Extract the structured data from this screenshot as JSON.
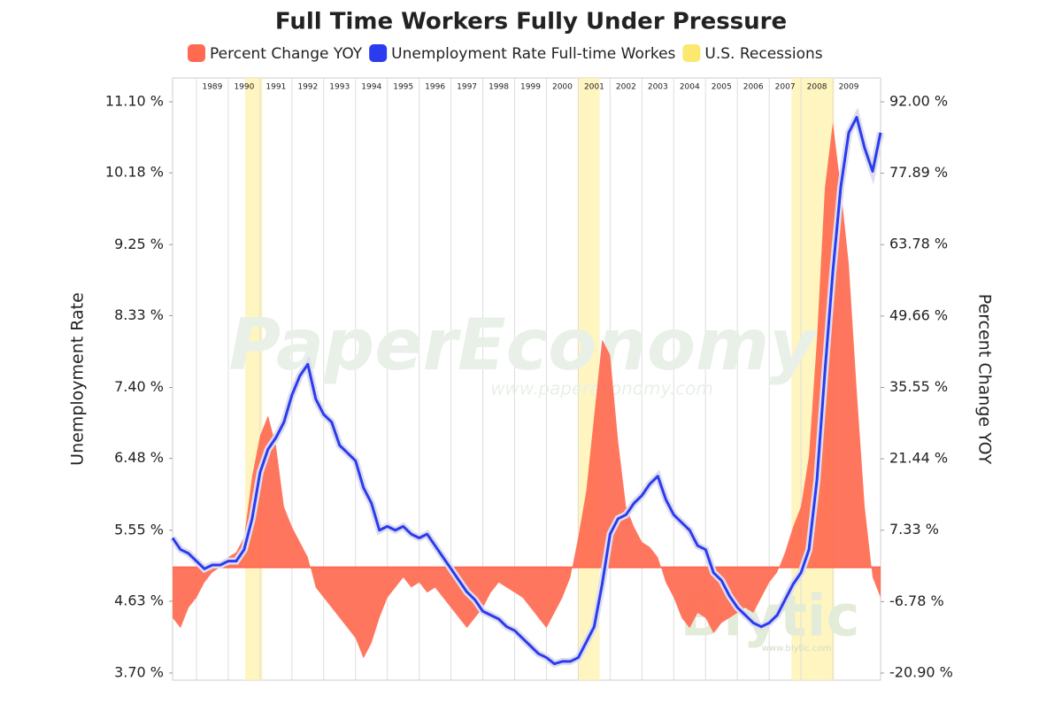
{
  "chart_data": {
    "type": "line-area",
    "title": "Full Time Workers Fully Under Pressure",
    "ylabel": "Unemployment Rate",
    "y2label": "Percent Change YOY",
    "watermarks": [
      "PaperEconomy",
      "www.papereconomy.com",
      "Blytic",
      "www.blytic.com"
    ],
    "xlim": [
      1988.25,
      2010.5
    ],
    "xticks": [
      1989,
      1990,
      1991,
      1992,
      1993,
      1994,
      1995,
      1996,
      1997,
      1998,
      1999,
      2000,
      2001,
      2002,
      2003,
      2004,
      2005,
      2006,
      2007,
      2008,
      2009
    ],
    "ylim": [
      3.7,
      11.1
    ],
    "yticks": [
      {
        "value": 3.7,
        "label": "3.70 %"
      },
      {
        "value": 4.63,
        "label": "4.63 %"
      },
      {
        "value": 5.55,
        "label": "5.55 %"
      },
      {
        "value": 6.48,
        "label": "6.48 %"
      },
      {
        "value": 7.4,
        "label": "7.40 %"
      },
      {
        "value": 8.33,
        "label": "8.33 %"
      },
      {
        "value": 9.25,
        "label": "9.25 %"
      },
      {
        "value": 10.18,
        "label": "10.18 %"
      },
      {
        "value": 11.1,
        "label": "11.10 %"
      }
    ],
    "y2lim": [
      -20.9,
      92.0
    ],
    "y2ticks": [
      {
        "value": -20.9,
        "label": "-20.90 %"
      },
      {
        "value": -6.78,
        "label": "-6.78 %"
      },
      {
        "value": 7.33,
        "label": "7.33 %"
      },
      {
        "value": 21.44,
        "label": "21.44 %"
      },
      {
        "value": 35.55,
        "label": "35.55 %"
      },
      {
        "value": 49.66,
        "label": "49.66 %"
      },
      {
        "value": 63.78,
        "label": "63.78 %"
      },
      {
        "value": 77.89,
        "label": "77.89 %"
      },
      {
        "value": 92.0,
        "label": "92.00 %"
      }
    ],
    "x": [
      1988.25,
      1988.5,
      1988.75,
      1989,
      1989.25,
      1989.5,
      1989.75,
      1990,
      1990.25,
      1990.5,
      1990.75,
      1991,
      1991.25,
      1991.5,
      1991.75,
      1992,
      1992.25,
      1992.5,
      1992.75,
      1993,
      1993.25,
      1993.5,
      1993.75,
      1994,
      1994.25,
      1994.5,
      1994.75,
      1995,
      1995.25,
      1995.5,
      1995.75,
      1996,
      1996.25,
      1996.5,
      1996.75,
      1997,
      1997.25,
      1997.5,
      1997.75,
      1998,
      1998.25,
      1998.5,
      1998.75,
      1999,
      1999.25,
      1999.5,
      1999.75,
      2000,
      2000.25,
      2000.5,
      2000.75,
      2001,
      2001.25,
      2001.5,
      2001.75,
      2002,
      2002.25,
      2002.5,
      2002.75,
      2003,
      2003.25,
      2003.5,
      2003.75,
      2004,
      2004.25,
      2004.5,
      2004.75,
      2005,
      2005.25,
      2005.5,
      2005.75,
      2006,
      2006.25,
      2006.5,
      2006.75,
      2007,
      2007.25,
      2007.5,
      2007.75,
      2008,
      2008.25,
      2008.5,
      2008.75,
      2009,
      2009.25,
      2009.5,
      2009.75,
      2010,
      2010.25,
      2010.5
    ],
    "series": [
      {
        "name": "Percent Change YOY",
        "color": "#ff6a50",
        "axis": "y2",
        "kind": "area",
        "values": [
          -10,
          -12,
          -8,
          -6,
          -3,
          -1,
          0,
          2,
          3,
          6,
          18,
          26,
          30,
          24,
          12,
          8,
          5,
          2,
          -4,
          -6,
          -8,
          -10,
          -12,
          -14,
          -18,
          -15,
          -10,
          -6,
          -4,
          -2,
          -4,
          -3,
          -5,
          -4,
          -6,
          -8,
          -10,
          -12,
          -10,
          -8,
          -5,
          -3,
          -4,
          -5,
          -6,
          -8,
          -10,
          -12,
          -9,
          -6,
          -2,
          6,
          15,
          30,
          45,
          42,
          25,
          12,
          8,
          5,
          4,
          2,
          -3,
          -6,
          -10,
          -12,
          -9,
          -10,
          -13,
          -11,
          -10,
          -9,
          -8,
          -9,
          -6,
          -3,
          -1,
          3,
          8,
          12,
          22,
          45,
          75,
          88,
          75,
          60,
          35,
          12,
          -2,
          -6
        ]
      },
      {
        "name": "Unemployment Rate Full-time Workes",
        "color": "#2b3bef",
        "axis": "y",
        "kind": "line",
        "values": [
          5.45,
          5.3,
          5.25,
          5.15,
          5.05,
          5.1,
          5.1,
          5.15,
          5.15,
          5.3,
          5.7,
          6.3,
          6.6,
          6.75,
          6.95,
          7.3,
          7.55,
          7.7,
          7.25,
          7.05,
          6.95,
          6.65,
          6.55,
          6.45,
          6.1,
          5.9,
          5.55,
          5.6,
          5.55,
          5.6,
          5.5,
          5.45,
          5.5,
          5.35,
          5.2,
          5.05,
          4.9,
          4.75,
          4.65,
          4.5,
          4.45,
          4.4,
          4.3,
          4.25,
          4.15,
          4.05,
          3.95,
          3.9,
          3.82,
          3.85,
          3.85,
          3.9,
          4.1,
          4.3,
          4.85,
          5.5,
          5.7,
          5.75,
          5.9,
          6.0,
          6.15,
          6.25,
          5.95,
          5.75,
          5.65,
          5.55,
          5.35,
          5.3,
          5.0,
          4.9,
          4.7,
          4.55,
          4.45,
          4.35,
          4.3,
          4.35,
          4.45,
          4.65,
          4.85,
          5.0,
          5.3,
          6.2,
          7.6,
          8.9,
          10.0,
          10.7,
          10.9,
          10.5,
          10.2,
          10.7
        ]
      }
    ],
    "bands": {
      "name": "U.S. Recessions",
      "color": "#fff3b0",
      "ranges": [
        [
          1990.53,
          1991.08
        ],
        [
          2000.98,
          2001.67
        ],
        [
          2007.7,
          2009.05
        ]
      ]
    },
    "grid": true
  }
}
